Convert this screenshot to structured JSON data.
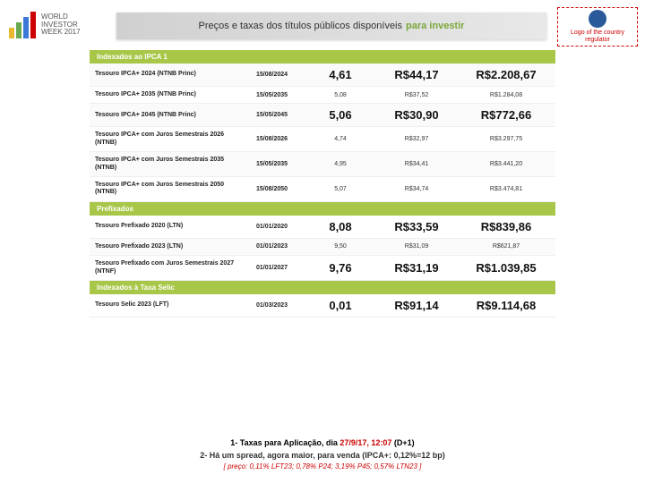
{
  "header": {
    "title_plain": "Preços e taxas dos títulos públicos disponíveis",
    "title_highlight": "para investir"
  },
  "logo_left": {
    "line1": "WORLD",
    "line2": "INVESTOR",
    "line3": "WEEK 2017",
    "bar_colors": [
      "#e8b92e",
      "#6aa84f",
      "#3c78d8",
      "#cc0000"
    ]
  },
  "logo_right": {
    "text": "Logo of the country regulator",
    "globe_color": "#2a5a9a"
  },
  "sections": [
    {
      "label": "Indexados ao IPCA 1",
      "rows": [
        {
          "name": "Tesouro IPCA+ 2024 (NTNB Princ)",
          "date": "15/08/2024",
          "rate": "4,61",
          "min": "R$44,17",
          "price": "R$2.208,67",
          "big": true
        },
        {
          "name": "Tesouro IPCA+ 2035 (NTNB Princ)",
          "date": "15/05/2035",
          "rate": "5,08",
          "min": "R$37,52",
          "price": "R$1.284,08",
          "big": false
        },
        {
          "name": "Tesouro IPCA+ 2045 (NTNB Princ)",
          "date": "15/05/2045",
          "rate": "5,06",
          "min": "R$30,90",
          "price": "R$772,66",
          "big": true
        },
        {
          "name": "Tesouro IPCA+ com Juros Semestrais 2026 (NTNB)",
          "date": "15/08/2026",
          "rate": "4,74",
          "min": "R$32,97",
          "price": "R$3.297,75",
          "big": false
        },
        {
          "name": "Tesouro IPCA+ com Juros Semestrais 2035 (NTNB)",
          "date": "15/05/2035",
          "rate": "4,95",
          "min": "R$34,41",
          "price": "R$3.441,20",
          "big": false
        },
        {
          "name": "Tesouro IPCA+ com Juros Semestrais 2050 (NTNB)",
          "date": "15/08/2050",
          "rate": "5,07",
          "min": "R$34,74",
          "price": "R$3.474,81",
          "big": false
        }
      ]
    },
    {
      "label": "Prefixados",
      "rows": [
        {
          "name": "Tesouro Prefixado 2020 (LTN)",
          "date": "01/01/2020",
          "rate": "8,08",
          "min": "R$33,59",
          "price": "R$839,86",
          "big": true
        },
        {
          "name": "Tesouro Prefixado 2023 (LTN)",
          "date": "01/01/2023",
          "rate": "9,50",
          "min": "R$31,09",
          "price": "R$621,87",
          "big": false
        },
        {
          "name": "Tesouro Prefixado com Juros Semestrais 2027 (NTNF)",
          "date": "01/01/2027",
          "rate": "9,76",
          "min": "R$31,19",
          "price": "R$1.039,85",
          "big": true
        }
      ]
    },
    {
      "label": "Indexados à Taxa Selic",
      "rows": [
        {
          "name": "Tesouro Selic 2023 (LFT)",
          "date": "01/03/2023",
          "rate": "0,01",
          "min": "R$91,14",
          "price": "R$9.114,68",
          "big": true
        }
      ]
    }
  ],
  "footer": {
    "l1_a": "1- Taxas para Aplicação, dia ",
    "l1_b": "27/9/17, 12:07",
    "l1_c": " (D+1)",
    "l2": "2- Há um spread, agora maior, para venda (IPCA+: 0,12%=12 bp)",
    "l3": "[ preço: 0,11% LFT23; 0,78% P24; 3,19% P45; 0,57% LTN23 ]"
  },
  "colors": {
    "section_bg": "#a8c648"
  }
}
